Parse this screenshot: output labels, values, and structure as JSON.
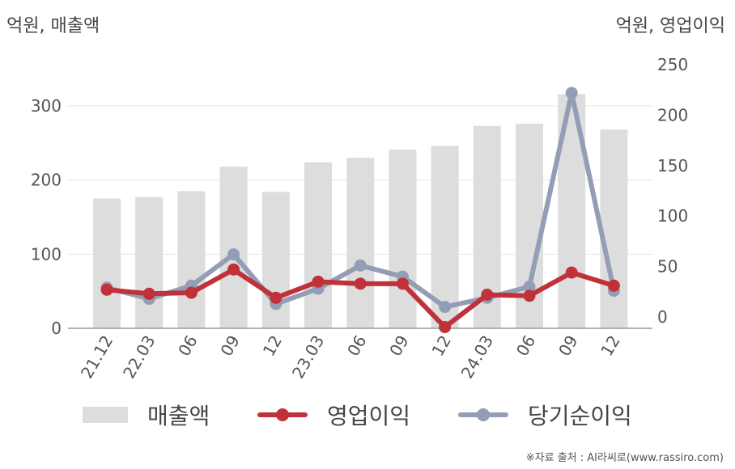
{
  "left_unit": "억원, 매출액",
  "right_unit": "억원, 영업이익",
  "source": "※자료 출처 : AI라씨로(www.rassiro.com)",
  "colors": {
    "bar": "#dddddd",
    "op_profit": "#c0313a",
    "net_profit": "#939db5",
    "grid": "#e6e6e6",
    "axis": "#999999"
  },
  "chart_data": {
    "type": "bar",
    "categories": [
      "21.12",
      "22.03",
      "06",
      "09",
      "12",
      "23.03",
      "06",
      "09",
      "12",
      "24.03",
      "06",
      "09",
      "12"
    ],
    "y_left": {
      "ylim": [
        0,
        350
      ],
      "ticks": [
        0,
        100,
        200,
        300
      ]
    },
    "y_right": {
      "ylim": [
        -11,
        262
      ],
      "ticks": [
        0,
        50,
        100,
        150,
        200,
        250
      ]
    },
    "series": [
      {
        "name": "매출액",
        "type": "bar",
        "axis": "left",
        "values": [
          175,
          177,
          185,
          218,
          184,
          224,
          230,
          241,
          246,
          273,
          276,
          316,
          268
        ]
      },
      {
        "name": "영업이익",
        "type": "line",
        "axis": "right",
        "values": [
          27,
          23,
          24,
          47,
          19,
          35,
          33,
          33,
          -10,
          22,
          21,
          44,
          31
        ]
      },
      {
        "name": "당기순이익",
        "type": "line",
        "axis": "right",
        "values": [
          29,
          18,
          31,
          62,
          13,
          28,
          51,
          40,
          10,
          19,
          30,
          222,
          26
        ]
      }
    ],
    "grid": true,
    "legend_position": "bottom"
  }
}
